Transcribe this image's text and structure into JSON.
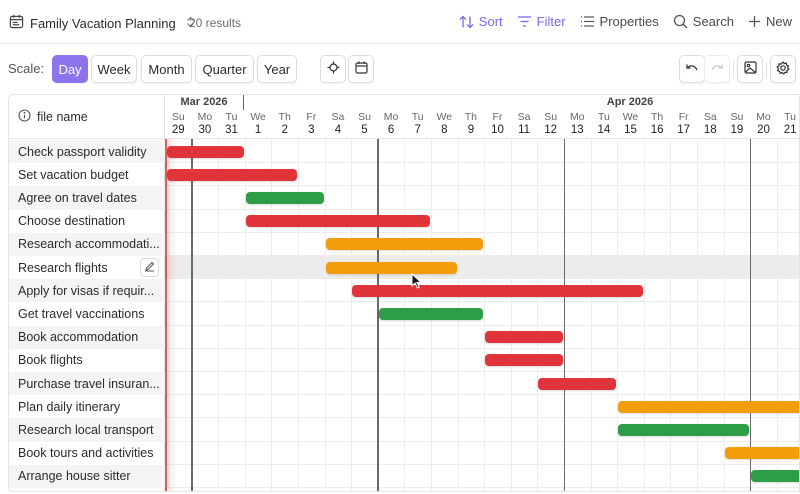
{
  "header": {
    "icon": "calendar-list-icon",
    "title": "Family Vacation Planning",
    "results": "20 results",
    "actions": {
      "sort": "Sort",
      "filter": "Filter",
      "properties": "Properties",
      "search": "Search",
      "new": "New"
    }
  },
  "scale": {
    "label": "Scale:",
    "options": [
      "Day",
      "Week",
      "Month",
      "Quarter",
      "Year"
    ],
    "selected": "Day"
  },
  "toolbar_icons": [
    "crosshair-icon",
    "calendar-icon",
    "undo-icon",
    "redo-icon",
    "export-image-icon",
    "settings-icon"
  ],
  "gantt": {
    "column_header": "file name",
    "months": [
      {
        "label": "Mar 2026"
      },
      {
        "label": "Apr 2026"
      }
    ],
    "days": [
      {
        "dow": "Su",
        "num": "29"
      },
      {
        "dow": "Mo",
        "num": "30"
      },
      {
        "dow": "Tu",
        "num": "31"
      },
      {
        "dow": "We",
        "num": "1"
      },
      {
        "dow": "Th",
        "num": "2"
      },
      {
        "dow": "Fr",
        "num": "3"
      },
      {
        "dow": "Sa",
        "num": "4"
      },
      {
        "dow": "Su",
        "num": "5"
      },
      {
        "dow": "Mo",
        "num": "6"
      },
      {
        "dow": "Tu",
        "num": "7"
      },
      {
        "dow": "We",
        "num": "8"
      },
      {
        "dow": "Th",
        "num": "9"
      },
      {
        "dow": "Fr",
        "num": "10"
      },
      {
        "dow": "Sa",
        "num": "11"
      },
      {
        "dow": "Su",
        "num": "12"
      },
      {
        "dow": "Mo",
        "num": "13"
      },
      {
        "dow": "Tu",
        "num": "14"
      },
      {
        "dow": "We",
        "num": "15"
      },
      {
        "dow": "Th",
        "num": "16"
      },
      {
        "dow": "Fr",
        "num": "17"
      },
      {
        "dow": "Sa",
        "num": "18"
      },
      {
        "dow": "Su",
        "num": "19"
      },
      {
        "dow": "Mo",
        "num": "20"
      },
      {
        "dow": "Tu",
        "num": "21"
      }
    ],
    "tasks": [
      {
        "name": "Check passport validity",
        "color": "red",
        "start": 0.05,
        "end": 3.0
      },
      {
        "name": "Set vacation budget",
        "color": "red",
        "start": 0.05,
        "end": 5.0
      },
      {
        "name": "Agree on travel dates",
        "color": "green",
        "start": 3.0,
        "end": 6.0
      },
      {
        "name": "Choose destination",
        "color": "red",
        "start": 3.0,
        "end": 10.0
      },
      {
        "name": "Research accommodati...",
        "color": "orange",
        "start": 6.0,
        "end": 12.0
      },
      {
        "name": "Research flights",
        "color": "orange",
        "start": 6.0,
        "end": 11.0
      },
      {
        "name": "Apply for visas if requir...",
        "color": "red",
        "start": 7.0,
        "end": 18.0
      },
      {
        "name": "Get travel vaccinations",
        "color": "green",
        "start": 8.0,
        "end": 12.0
      },
      {
        "name": "Book accommodation",
        "color": "red",
        "start": 12.0,
        "end": 15.0
      },
      {
        "name": "Book flights",
        "color": "red",
        "start": 12.0,
        "end": 15.0
      },
      {
        "name": "Purchase travel insuran...",
        "color": "red",
        "start": 14.0,
        "end": 17.0
      },
      {
        "name": "Plan daily itinerary",
        "color": "orange",
        "start": 17.0,
        "end": 24.5
      },
      {
        "name": "Research local transport",
        "color": "green",
        "start": 17.0,
        "end": 22.0
      },
      {
        "name": "Book tours and activities",
        "color": "orange",
        "start": 21.0,
        "end": 24.5
      },
      {
        "name": "Arrange house sitter",
        "color": "green",
        "start": 22.0,
        "end": 24.5
      }
    ],
    "hovered_row": 5,
    "colors": {
      "red": "#e0343a",
      "green": "#2d9e47",
      "orange": "#f29d0c",
      "accent": "#7b68ee",
      "today": "#e05a5a"
    }
  }
}
